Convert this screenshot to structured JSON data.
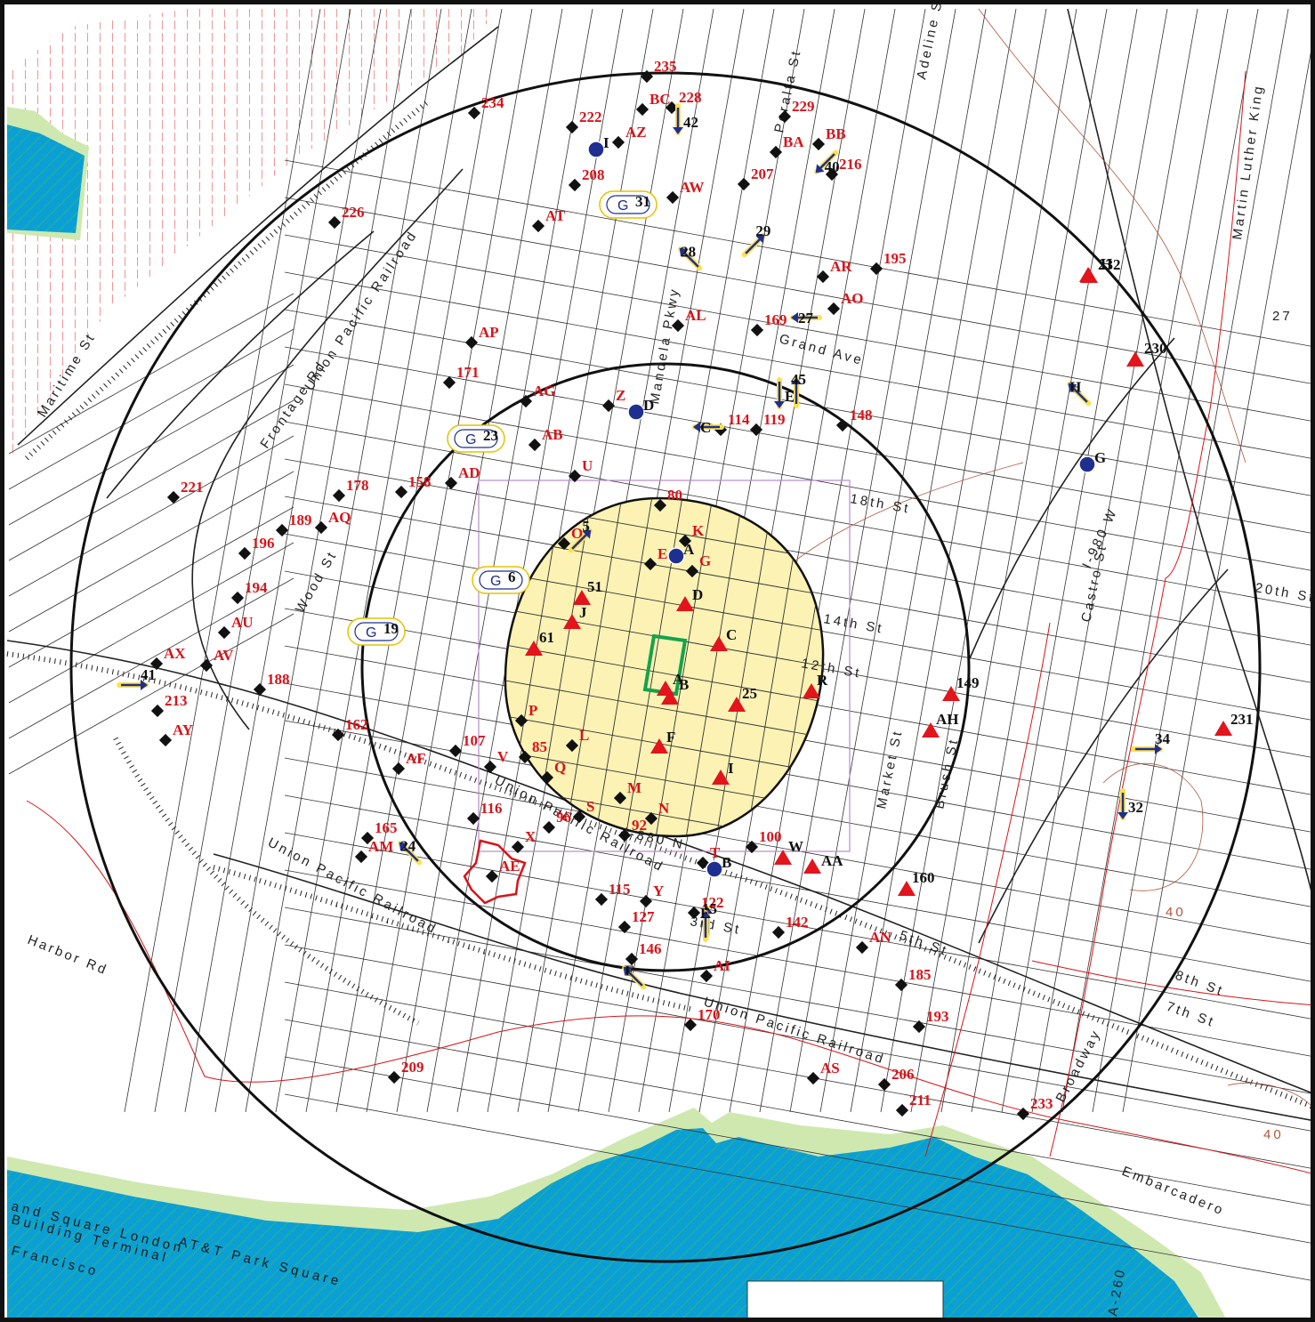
{
  "colors": {
    "water": "#0aa0d6",
    "shore": "#8bc34a",
    "shore_light": "#cfe8b0",
    "site_zone": "#fbf2b4",
    "hazard_marker": "#e2141c",
    "well_marker": "#1f2f90",
    "site_outline": "#14a34a",
    "railroad": "#222222",
    "contour": "#b0563a",
    "rail_red": "#d7141a"
  },
  "icon_legend": {
    "triangle": "red-triangle-icon",
    "diamond": "black-diamond-icon",
    "well": "blue-dot-well-icon",
    "arrow": "flow-arrow-icon",
    "capsule": "g-capsule-icon"
  },
  "streets": {
    "maritime": "Maritime St",
    "up_railroad_1": "Union Pacific Railroad",
    "frontage": "Frontage Rd",
    "wood": "Wood St",
    "grand": "Grand Ave",
    "mandela": "Mandela Pkwy",
    "peralta": "Peralta St",
    "adeline": "Adeline St",
    "mlk": "Martin Luther King",
    "st18": "18th St",
    "st14": "14th St",
    "st12": "12th St",
    "st20": "20th St",
    "market": "Market St",
    "brush": "Brush St",
    "castro": "Castro St",
    "i980": "I-980 W",
    "up_railroad_2": "Union Pacific Railroad",
    "up_railroad_3": "Union Pacific Railroad",
    "i880": "I-880 N",
    "st3": "3rd St",
    "st5": "5th St",
    "harbor": "Harbor Rd",
    "broadway": "Broadway",
    "st8": "8th St",
    "st7": "7th St",
    "embarcadero": "Embarcadero",
    "a260": "A-260",
    "st27": "27",
    "ad1": "and Square London",
    "ad2": "Building Terminal",
    "ad3": "Francisco",
    "ad4": "AT&T Park Square"
  },
  "contour_labels": [
    "40",
    "40"
  ],
  "red_markers": [
    {
      "label": "A"
    },
    {
      "label": "B"
    },
    {
      "label": "C"
    },
    {
      "label": "D"
    },
    {
      "label": "F"
    },
    {
      "label": "I"
    },
    {
      "label": "J"
    },
    {
      "label": "61"
    },
    {
      "label": "25"
    },
    {
      "label": "51"
    },
    {
      "label": "R"
    },
    {
      "label": "W"
    },
    {
      "label": "AA"
    },
    {
      "label": "H"
    },
    {
      "label": "149"
    },
    {
      "label": "AH"
    },
    {
      "label": "160"
    },
    {
      "label": "232"
    },
    {
      "label": "230"
    },
    {
      "label": "231"
    }
  ],
  "diamonds": [
    {
      "label": "235"
    },
    {
      "label": "234"
    },
    {
      "label": "BC"
    },
    {
      "label": "228"
    },
    {
      "label": "222"
    },
    {
      "label": "AZ"
    },
    {
      "label": "229"
    },
    {
      "label": "BA"
    },
    {
      "label": "BB"
    },
    {
      "label": "216"
    },
    {
      "label": "207"
    },
    {
      "label": "208"
    },
    {
      "label": "AW"
    },
    {
      "label": "AT"
    },
    {
      "label": "226"
    },
    {
      "label": "AR"
    },
    {
      "label": "195"
    },
    {
      "label": "AO"
    },
    {
      "label": "169"
    },
    {
      "label": "AL"
    },
    {
      "label": "AP"
    },
    {
      "label": "171"
    },
    {
      "label": "AG"
    },
    {
      "label": "Z"
    },
    {
      "label": "119"
    },
    {
      "label": "148"
    },
    {
      "label": "114"
    },
    {
      "label": "AB"
    },
    {
      "label": "U"
    },
    {
      "label": "AD"
    },
    {
      "label": "158"
    },
    {
      "label": "178"
    },
    {
      "label": "221"
    },
    {
      "label": "189"
    },
    {
      "label": "AQ"
    },
    {
      "label": "196"
    },
    {
      "label": "194"
    },
    {
      "label": "AU"
    },
    {
      "label": "AX"
    },
    {
      "label": "AV"
    },
    {
      "label": "188"
    },
    {
      "label": "213"
    },
    {
      "label": "AY"
    },
    {
      "label": "162"
    },
    {
      "label": "AF"
    },
    {
      "label": "107"
    },
    {
      "label": "V"
    },
    {
      "label": "85"
    },
    {
      "label": "P"
    },
    {
      "label": "L"
    },
    {
      "label": "Q"
    },
    {
      "label": "M"
    },
    {
      "label": "S"
    },
    {
      "label": "N"
    },
    {
      "label": "96"
    },
    {
      "label": "92"
    },
    {
      "label": "116"
    },
    {
      "label": "X"
    },
    {
      "label": "165"
    },
    {
      "label": "AM"
    },
    {
      "label": "AE"
    },
    {
      "label": "T"
    },
    {
      "label": "100"
    },
    {
      "label": "115"
    },
    {
      "label": "Y"
    },
    {
      "label": "127"
    },
    {
      "label": "122"
    },
    {
      "label": "142"
    },
    {
      "label": "146"
    },
    {
      "label": "AI"
    },
    {
      "label": "AN"
    },
    {
      "label": "185"
    },
    {
      "label": "193"
    },
    {
      "label": "170"
    },
    {
      "label": "209"
    },
    {
      "label": "206"
    },
    {
      "label": "211"
    },
    {
      "label": "AS"
    },
    {
      "label": "233"
    },
    {
      "label": "80"
    },
    {
      "label": "K"
    },
    {
      "label": "E"
    },
    {
      "label": "G"
    },
    {
      "label": "O"
    }
  ],
  "wells": [
    {
      "label": "I"
    },
    {
      "label": "D"
    },
    {
      "label": "A"
    },
    {
      "label": "B"
    },
    {
      "label": "G"
    }
  ],
  "arrows": [
    {
      "label": "42"
    },
    {
      "label": "40"
    },
    {
      "label": "28"
    },
    {
      "label": "29"
    },
    {
      "label": "27"
    },
    {
      "label": "E"
    },
    {
      "label": "45"
    },
    {
      "label": "C"
    },
    {
      "label": "H"
    },
    {
      "label": "5"
    },
    {
      "label": "41"
    },
    {
      "label": "24"
    },
    {
      "label": "15"
    },
    {
      "label": "E"
    },
    {
      "label": "F"
    },
    {
      "label": "34"
    },
    {
      "label": "32"
    }
  ],
  "capsules": [
    {
      "text": "G",
      "num": "31"
    },
    {
      "text": "G",
      "num": "23"
    },
    {
      "text": "G",
      "num": "6"
    },
    {
      "text": "G",
      "num": "19"
    }
  ]
}
